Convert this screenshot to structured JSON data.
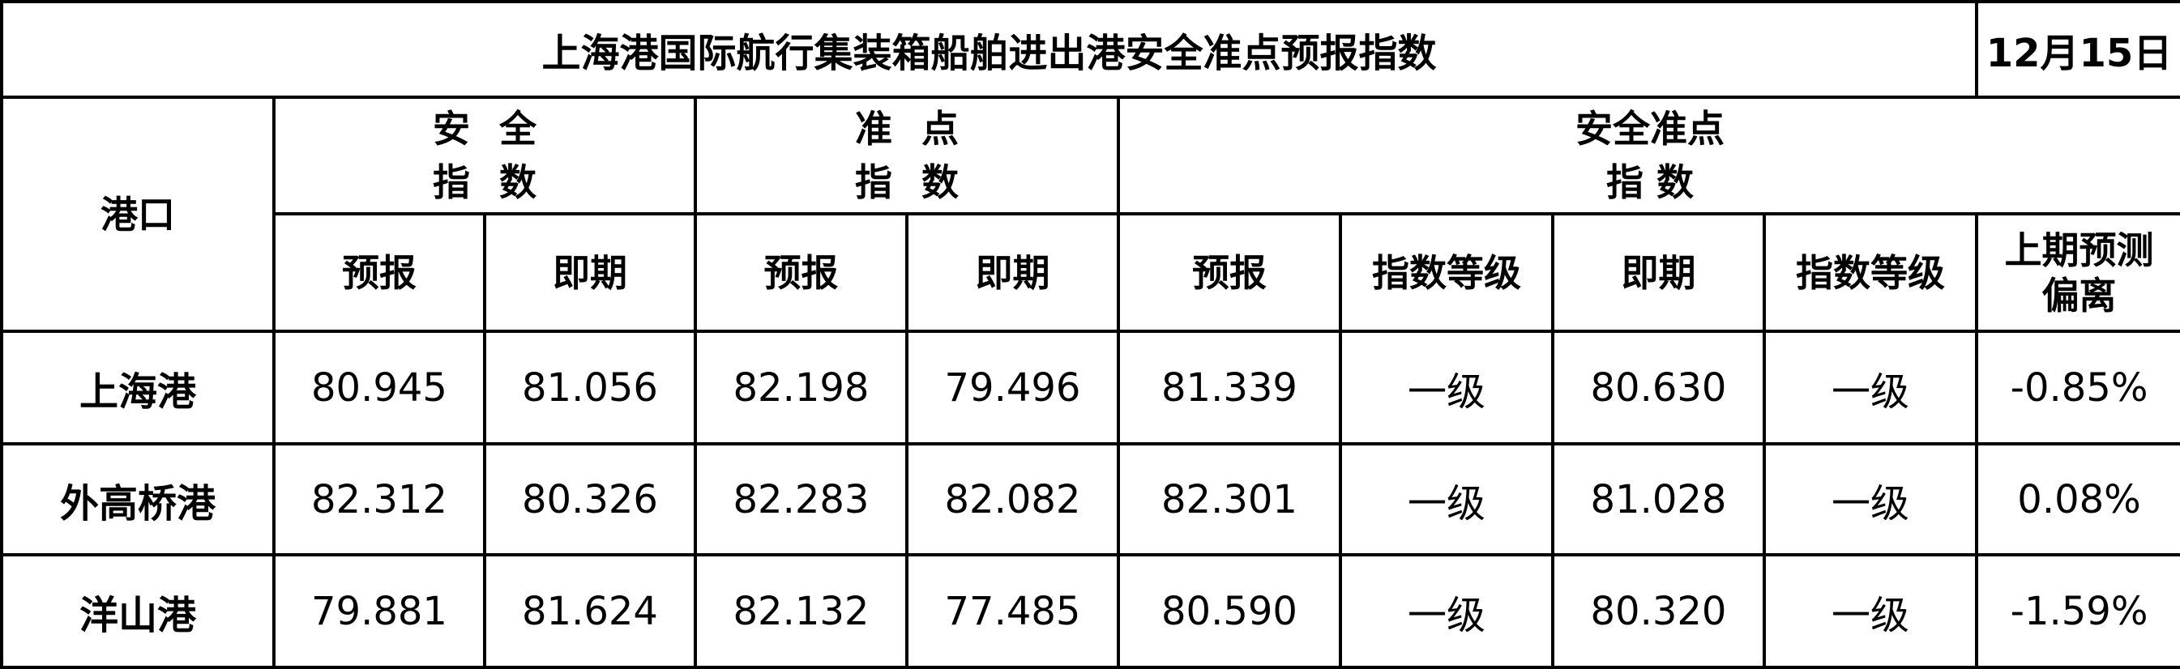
{
  "title": "上海港国际航行集装箱船舶进出港安全准点预报指数",
  "date": "12月15日",
  "headers": {
    "port": "港口",
    "safety_line1": "安全",
    "safety_line2": "指数",
    "punctual_line1": "准点",
    "punctual_line2": "指数",
    "combined_line1": "安全准点",
    "combined_line2": "指 数",
    "forecast": "预报",
    "current": "即期",
    "grade": "指数等级",
    "deviation_line1": "上期预测",
    "deviation_line2": "偏离"
  },
  "rows": [
    {
      "port": "上海港",
      "safety_forecast": "80.945",
      "safety_current": "81.056",
      "punctual_forecast": "82.198",
      "punctual_current": "79.496",
      "combined_forecast": "81.339",
      "forecast_grade": "一级",
      "combined_current": "80.630",
      "current_grade": "一级",
      "deviation": "-0.85%"
    },
    {
      "port": "外高桥港",
      "safety_forecast": "82.312",
      "safety_current": "80.326",
      "punctual_forecast": "82.283",
      "punctual_current": "82.082",
      "combined_forecast": "82.301",
      "forecast_grade": "一级",
      "combined_current": "81.028",
      "current_grade": "一级",
      "deviation": "0.08%"
    },
    {
      "port": "洋山港",
      "safety_forecast": "79.881",
      "safety_current": "81.624",
      "punctual_forecast": "82.132",
      "punctual_current": "77.485",
      "combined_forecast": "80.590",
      "forecast_grade": "一级",
      "combined_current": "80.320",
      "current_grade": "一级",
      "deviation": "-1.59%"
    }
  ]
}
